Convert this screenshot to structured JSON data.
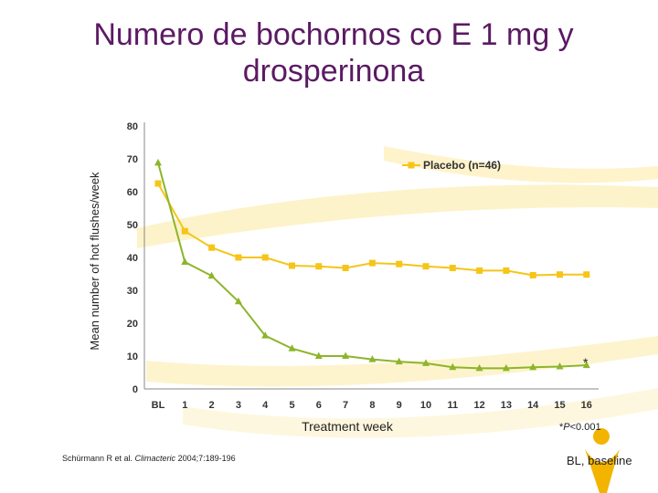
{
  "slide": {
    "title": "Numero de bochornos co E 1 mg y drosperinona",
    "significance_mark": "*",
    "footnote_symbol": "*",
    "footnote_p": "P",
    "footnote_rest": "<0.001",
    "citation_authors": "Schürmann R et al. ",
    "citation_journal": "Climacteric",
    "citation_rest": " 2004;7:189-196",
    "abbreviation": "BL, baseline"
  },
  "colors": {
    "title": "#5b1a63",
    "placebo": "#f5c518",
    "treatment": "#8db52a",
    "swoosh": "#fcecae"
  },
  "chart_data": {
    "type": "line",
    "title": "",
    "xlabel": "Treatment week",
    "ylabel": "Mean number of hot flushes/week",
    "categories": [
      "BL",
      "1",
      "2",
      "3",
      "4",
      "5",
      "6",
      "7",
      "8",
      "9",
      "10",
      "11",
      "12",
      "13",
      "14",
      "15",
      "16"
    ],
    "ylim": [
      0,
      80
    ],
    "yticks": [
      "0",
      "10",
      "20",
      "30",
      "40",
      "50",
      "60",
      "70",
      "80"
    ],
    "grid": false,
    "legend": "top-right",
    "series": [
      {
        "name": "Placebo (n=46)",
        "marker": "square",
        "values": [
          62.5,
          48,
          43,
          40,
          40,
          37.5,
          37.3,
          36.8,
          38.3,
          38,
          37.3,
          36.8,
          36,
          36,
          34.6,
          34.8,
          34.8
        ]
      },
      {
        "name": "",
        "marker": "triangle",
        "values": [
          68.8,
          38.6,
          34.4,
          26.6,
          16.2,
          12.3,
          10,
          10,
          9,
          8.3,
          7.8,
          6.6,
          6.3,
          6.3,
          6.6,
          6.8,
          7.2
        ]
      }
    ]
  }
}
